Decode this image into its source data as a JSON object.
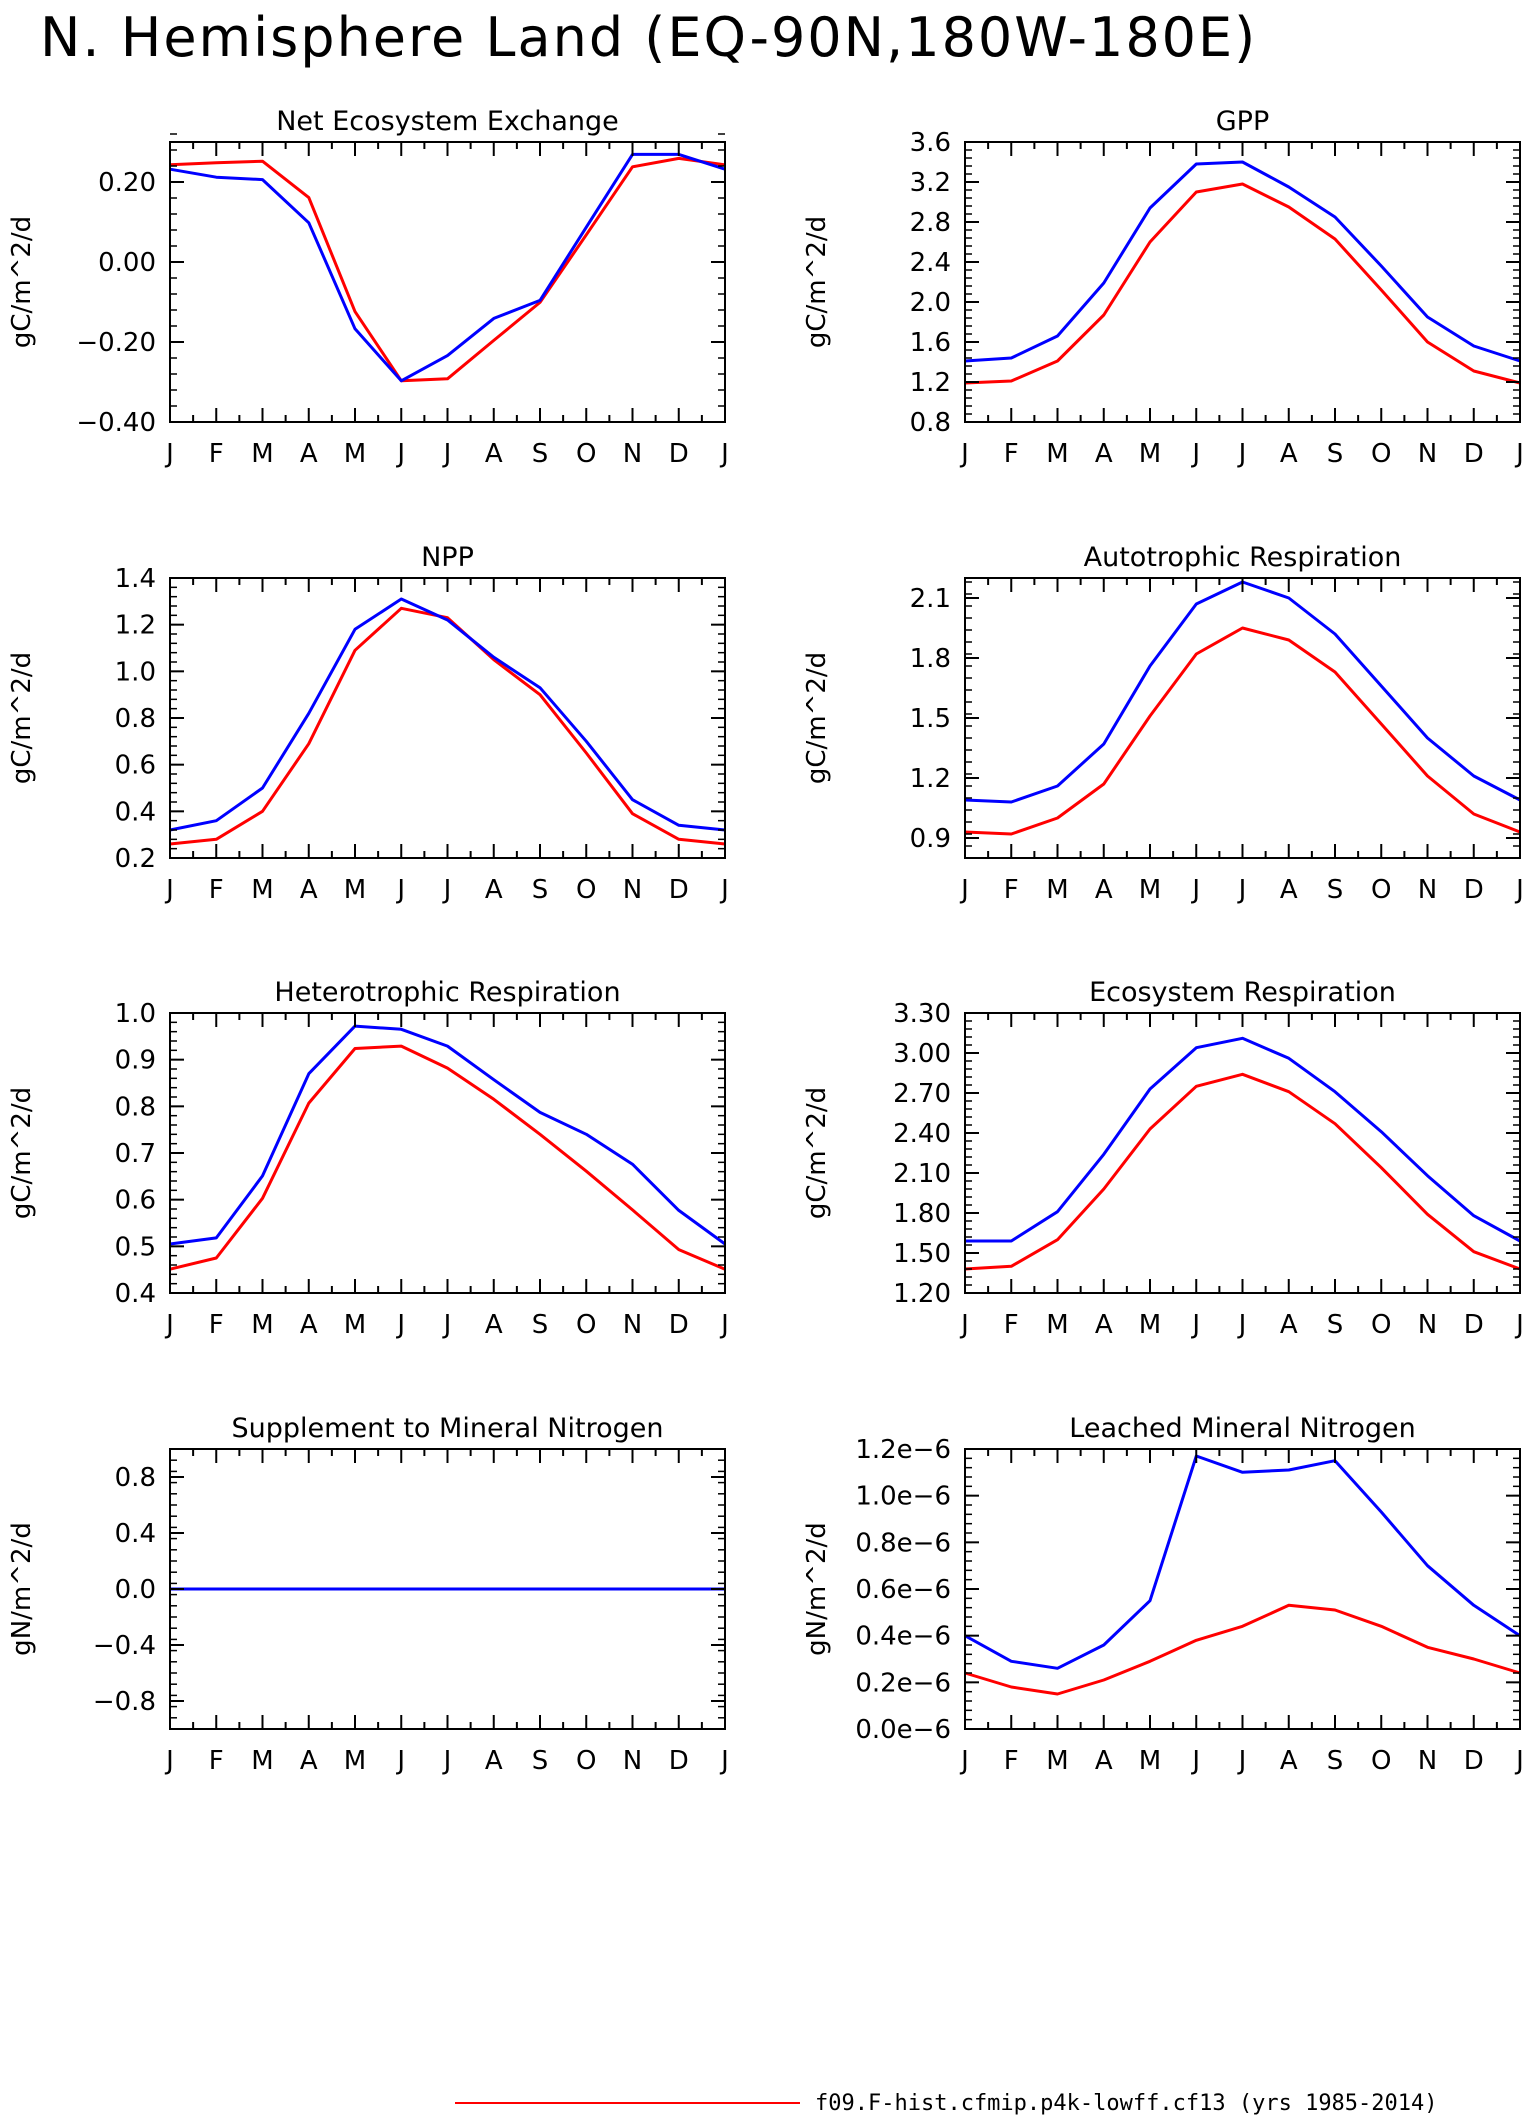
{
  "page_title": "N. Hemisphere Land (EQ-90N,180W-180E)",
  "legend": {
    "label": "f09.F-hist.cfmip.p4k-lowff.cf13 (yrs 1985-2014)",
    "color": "#ff0000"
  },
  "colors": {
    "red": "#ff0000",
    "blue": "#0000ff",
    "axis": "#000000"
  },
  "chart_data": [
    {
      "type": "line",
      "title": "Net Ecosystem Exchange",
      "ylabel": "gC/m^2/d",
      "ylim": [
        -0.4,
        0.3
      ],
      "yticks": [
        -0.4,
        -0.2,
        0.0,
        0.2
      ],
      "ytick_labels": [
        "-0.40",
        "-0.20",
        "0.00",
        "0.20"
      ],
      "categories": [
        "J",
        "F",
        "M",
        "A",
        "M",
        "J",
        "J",
        "A",
        "S",
        "O",
        "N",
        "D",
        "J"
      ],
      "series": [
        {
          "color": "#ff0000",
          "values": [
            0.243,
            0.248,
            0.252,
            0.161,
            -0.124,
            -0.297,
            -0.292,
            -0.196,
            -0.101,
            0.068,
            0.238,
            0.259,
            0.243
          ]
        },
        {
          "color": "#0000ff",
          "values": [
            0.232,
            0.212,
            0.206,
            0.098,
            -0.167,
            -0.297,
            -0.234,
            -0.141,
            -0.096,
            0.087,
            0.269,
            0.269,
            0.232
          ]
        }
      ]
    },
    {
      "type": "line",
      "title": "GPP",
      "ylabel": "gC/m^2/d",
      "ylim": [
        0.8,
        3.6
      ],
      "yticks": [
        0.8,
        1.2,
        1.6,
        2.0,
        2.4,
        2.8,
        3.2,
        3.6
      ],
      "ytick_labels": [
        "0.8",
        "1.2",
        "1.6",
        "2.0",
        "2.4",
        "2.8",
        "3.2",
        "3.6"
      ],
      "categories": [
        "J",
        "F",
        "M",
        "A",
        "M",
        "J",
        "J",
        "A",
        "S",
        "O",
        "N",
        "D",
        "J"
      ],
      "series": [
        {
          "color": "#ff0000",
          "values": [
            1.19,
            1.21,
            1.41,
            1.87,
            2.6,
            3.1,
            3.18,
            2.95,
            2.63,
            2.12,
            1.6,
            1.31,
            1.19
          ]
        },
        {
          "color": "#0000ff",
          "values": [
            1.41,
            1.44,
            1.66,
            2.19,
            2.94,
            3.38,
            3.4,
            3.15,
            2.85,
            2.36,
            1.85,
            1.56,
            1.41
          ]
        }
      ]
    },
    {
      "type": "line",
      "title": "NPP",
      "ylabel": "gC/m^2/d",
      "ylim": [
        0.2,
        1.4
      ],
      "yticks": [
        0.2,
        0.4,
        0.6,
        0.8,
        1.0,
        1.2,
        1.4
      ],
      "ytick_labels": [
        "0.2",
        "0.4",
        "0.6",
        "0.8",
        "1.0",
        "1.2",
        "1.4"
      ],
      "categories": [
        "J",
        "F",
        "M",
        "A",
        "M",
        "J",
        "J",
        "A",
        "S",
        "O",
        "N",
        "D",
        "J"
      ],
      "series": [
        {
          "color": "#ff0000",
          "values": [
            0.26,
            0.28,
            0.4,
            0.69,
            1.09,
            1.27,
            1.23,
            1.05,
            0.9,
            0.65,
            0.39,
            0.28,
            0.26
          ]
        },
        {
          "color": "#0000ff",
          "values": [
            0.32,
            0.36,
            0.5,
            0.82,
            1.18,
            1.31,
            1.22,
            1.06,
            0.93,
            0.7,
            0.45,
            0.34,
            0.32
          ]
        }
      ]
    },
    {
      "type": "line",
      "title": "Autotrophic Respiration",
      "ylabel": "gC/m^2/d",
      "ylim": [
        0.8,
        2.2
      ],
      "yticks": [
        0.9,
        1.2,
        1.5,
        1.8,
        2.1
      ],
      "ytick_labels": [
        "0.9",
        "1.2",
        "1.5",
        "1.8",
        "2.1"
      ],
      "categories": [
        "J",
        "F",
        "M",
        "A",
        "M",
        "J",
        "J",
        "A",
        "S",
        "O",
        "N",
        "D",
        "J"
      ],
      "series": [
        {
          "color": "#ff0000",
          "values": [
            0.93,
            0.92,
            1.0,
            1.17,
            1.51,
            1.82,
            1.95,
            1.89,
            1.73,
            1.47,
            1.21,
            1.02,
            0.93
          ]
        },
        {
          "color": "#0000ff",
          "values": [
            1.09,
            1.08,
            1.16,
            1.37,
            1.76,
            2.07,
            2.18,
            2.1,
            1.92,
            1.66,
            1.4,
            1.21,
            1.09
          ]
        }
      ]
    },
    {
      "type": "line",
      "title": "Heterotrophic Respiration",
      "ylabel": "gC/m^2/d",
      "ylim": [
        0.4,
        1.0
      ],
      "yticks": [
        0.4,
        0.5,
        0.6,
        0.7,
        0.8,
        0.9,
        1.0
      ],
      "ytick_labels": [
        "0.4",
        "0.5",
        "0.6",
        "0.7",
        "0.8",
        "0.9",
        "1.0"
      ],
      "categories": [
        "J",
        "F",
        "M",
        "A",
        "M",
        "J",
        "J",
        "A",
        "S",
        "O",
        "N",
        "D",
        "J"
      ],
      "series": [
        {
          "color": "#ff0000",
          "values": [
            0.451,
            0.475,
            0.603,
            0.807,
            0.924,
            0.929,
            0.882,
            0.815,
            0.74,
            0.661,
            0.578,
            0.493,
            0.451
          ]
        },
        {
          "color": "#0000ff",
          "values": [
            0.505,
            0.518,
            0.651,
            0.87,
            0.972,
            0.965,
            0.929,
            0.857,
            0.787,
            0.74,
            0.676,
            0.577,
            0.505
          ]
        }
      ]
    },
    {
      "type": "line",
      "title": "Ecosystem Respiration",
      "ylabel": "gC/m^2/d",
      "ylim": [
        1.2,
        3.3
      ],
      "yticks": [
        1.2,
        1.5,
        1.8,
        2.1,
        2.4,
        2.7,
        3.0,
        3.3
      ],
      "ytick_labels": [
        "1.20",
        "1.50",
        "1.80",
        "2.10",
        "2.40",
        "2.70",
        "3.00",
        "3.30"
      ],
      "categories": [
        "J",
        "F",
        "M",
        "A",
        "M",
        "J",
        "J",
        "A",
        "S",
        "O",
        "N",
        "D",
        "J"
      ],
      "series": [
        {
          "color": "#ff0000",
          "values": [
            1.38,
            1.4,
            1.6,
            1.98,
            2.43,
            2.75,
            2.84,
            2.71,
            2.47,
            2.14,
            1.79,
            1.51,
            1.38
          ]
        },
        {
          "color": "#0000ff",
          "values": [
            1.59,
            1.59,
            1.81,
            2.24,
            2.73,
            3.04,
            3.11,
            2.96,
            2.71,
            2.41,
            2.08,
            1.78,
            1.59
          ]
        }
      ]
    },
    {
      "type": "line",
      "title": "Supplement to Mineral Nitrogen",
      "ylabel": "gN/m^2/d",
      "ylim": [
        -1.0,
        1.0
      ],
      "yticks": [
        -0.8,
        -0.4,
        0.0,
        0.4,
        0.8
      ],
      "ytick_labels": [
        "-0.8",
        "-0.4",
        "0.0",
        "0.4",
        "0.8"
      ],
      "categories": [
        "J",
        "F",
        "M",
        "A",
        "M",
        "J",
        "J",
        "A",
        "S",
        "O",
        "N",
        "D",
        "J"
      ],
      "series": [
        {
          "color": "#ff0000",
          "values": [
            0,
            0,
            0,
            0,
            0,
            0,
            0,
            0,
            0,
            0,
            0,
            0,
            0
          ]
        },
        {
          "color": "#0000ff",
          "values": [
            0,
            0,
            0,
            0,
            0,
            0,
            0,
            0,
            0,
            0,
            0,
            0,
            0
          ]
        }
      ]
    },
    {
      "type": "line",
      "title": "Leached Mineral Nitrogen",
      "ylabel": "gN/m^2/d",
      "ylim": [
        0.0,
        1.2
      ],
      "yticks": [
        0.0,
        0.2,
        0.4,
        0.6,
        0.8,
        1.0,
        1.2
      ],
      "ytick_labels": [
        "0.0e-6",
        "0.2e-6",
        "0.4e-6",
        "0.6e-6",
        "0.8e-6",
        "1.0e-6",
        "1.2e-6"
      ],
      "categories": [
        "J",
        "F",
        "M",
        "A",
        "M",
        "J",
        "J",
        "A",
        "S",
        "O",
        "N",
        "D",
        "J"
      ],
      "series": [
        {
          "color": "#ff0000",
          "values": [
            0.24,
            0.18,
            0.15,
            0.21,
            0.29,
            0.38,
            0.44,
            0.53,
            0.51,
            0.44,
            0.35,
            0.3,
            0.24
          ]
        },
        {
          "color": "#0000ff",
          "values": [
            0.4,
            0.29,
            0.26,
            0.36,
            0.55,
            1.17,
            1.1,
            1.11,
            1.15,
            0.93,
            0.7,
            0.53,
            0.4
          ]
        }
      ]
    }
  ]
}
